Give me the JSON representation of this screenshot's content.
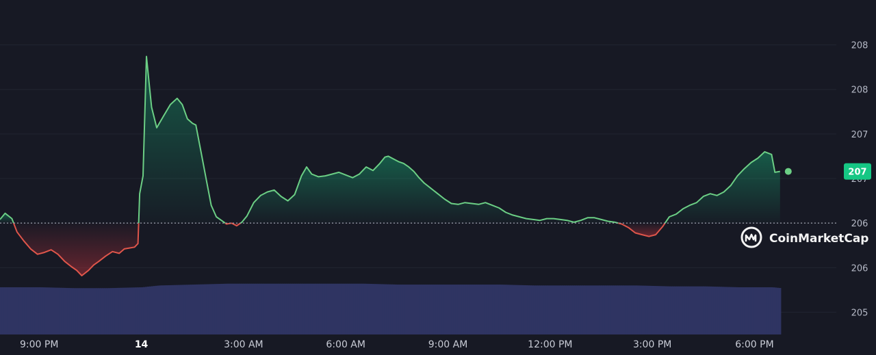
{
  "colors": {
    "background": "#171924",
    "up": "#6ccf85",
    "down": "#e0564b",
    "volume": "#2f3462",
    "grid": "#222531",
    "baseline": "#9fa3b1",
    "badge": "#16c784"
  },
  "watermark": {
    "label": "CoinMarketCap",
    "icon": "coinmarketcap-logo-icon"
  },
  "current_price_badge": "207",
  "chart_data": {
    "type": "area",
    "title": "",
    "xlabel": "",
    "ylabel": "",
    "x_ticks": [
      {
        "label": "9:00 PM",
        "hour": 21,
        "bold": false
      },
      {
        "label": "14",
        "hour": 24,
        "bold": true
      },
      {
        "label": "3:00 AM",
        "hour": 27,
        "bold": false
      },
      {
        "label": "6:00 AM",
        "hour": 30,
        "bold": false
      },
      {
        "label": "9:00 AM",
        "hour": 33,
        "bold": false
      },
      {
        "label": "12:00 PM",
        "hour": 36,
        "bold": false
      },
      {
        "label": "3:00 PM",
        "hour": 39,
        "bold": false
      },
      {
        "label": "6:00 PM",
        "hour": 42,
        "bold": false
      }
    ],
    "y_ticks": [
      {
        "label": "208",
        "value": 208.25
      },
      {
        "label": "208",
        "value": 207.75
      },
      {
        "label": "207",
        "value": 207.25
      },
      {
        "label": "207",
        "value": 206.75
      },
      {
        "label": "206",
        "value": 206.25
      },
      {
        "label": "206",
        "value": 205.75
      },
      {
        "label": "205",
        "value": 205.25
      }
    ],
    "ylim": [
      205.0,
      208.6
    ],
    "xlim": [
      19.85,
      44.1
    ],
    "baseline": 206.25,
    "grid": true,
    "series": [
      {
        "points": [
          [
            19.85,
            206.29
          ],
          [
            20.0,
            206.36
          ],
          [
            20.2,
            206.3
          ],
          [
            20.35,
            206.15
          ],
          [
            20.55,
            206.05
          ],
          [
            20.75,
            205.96
          ],
          [
            20.95,
            205.9
          ],
          [
            21.15,
            205.92
          ],
          [
            21.35,
            205.95
          ],
          [
            21.55,
            205.9
          ],
          [
            21.75,
            205.82
          ],
          [
            21.95,
            205.76
          ],
          [
            22.1,
            205.72
          ],
          [
            22.25,
            205.66
          ],
          [
            22.45,
            205.72
          ],
          [
            22.6,
            205.78
          ],
          [
            22.75,
            205.82
          ],
          [
            22.95,
            205.88
          ],
          [
            23.15,
            205.93
          ],
          [
            23.35,
            205.91
          ],
          [
            23.5,
            205.96
          ],
          [
            23.65,
            205.97
          ],
          [
            23.8,
            205.98
          ],
          [
            23.9,
            206.02
          ],
          [
            23.95,
            206.58
          ],
          [
            24.05,
            206.78
          ],
          [
            24.15,
            208.12
          ],
          [
            24.22,
            207.85
          ],
          [
            24.3,
            207.55
          ],
          [
            24.45,
            207.32
          ],
          [
            24.65,
            207.45
          ],
          [
            24.85,
            207.58
          ],
          [
            25.05,
            207.65
          ],
          [
            25.2,
            207.58
          ],
          [
            25.35,
            207.42
          ],
          [
            25.5,
            207.37
          ],
          [
            25.6,
            207.35
          ],
          [
            25.75,
            207.05
          ],
          [
            25.9,
            206.75
          ],
          [
            26.05,
            206.45
          ],
          [
            26.2,
            206.32
          ],
          [
            26.35,
            206.28
          ],
          [
            26.5,
            206.24
          ],
          [
            26.65,
            206.25
          ],
          [
            26.8,
            206.22
          ],
          [
            26.95,
            206.26
          ],
          [
            27.1,
            206.33
          ],
          [
            27.3,
            206.48
          ],
          [
            27.5,
            206.56
          ],
          [
            27.7,
            206.6
          ],
          [
            27.9,
            206.62
          ],
          [
            28.1,
            206.55
          ],
          [
            28.3,
            206.5
          ],
          [
            28.5,
            206.57
          ],
          [
            28.7,
            206.78
          ],
          [
            28.85,
            206.88
          ],
          [
            29.0,
            206.8
          ],
          [
            29.2,
            206.77
          ],
          [
            29.4,
            206.78
          ],
          [
            29.6,
            206.8
          ],
          [
            29.8,
            206.82
          ],
          [
            30.0,
            206.79
          ],
          [
            30.2,
            206.76
          ],
          [
            30.4,
            206.8
          ],
          [
            30.6,
            206.88
          ],
          [
            30.8,
            206.84
          ],
          [
            31.0,
            206.92
          ],
          [
            31.15,
            206.99
          ],
          [
            31.25,
            207.0
          ],
          [
            31.4,
            206.97
          ],
          [
            31.55,
            206.94
          ],
          [
            31.7,
            206.92
          ],
          [
            31.85,
            206.88
          ],
          [
            32.0,
            206.83
          ],
          [
            32.15,
            206.76
          ],
          [
            32.3,
            206.7
          ],
          [
            32.5,
            206.64
          ],
          [
            32.7,
            206.58
          ],
          [
            32.9,
            206.52
          ],
          [
            33.1,
            206.47
          ],
          [
            33.3,
            206.46
          ],
          [
            33.5,
            206.48
          ],
          [
            33.7,
            206.47
          ],
          [
            33.9,
            206.46
          ],
          [
            34.1,
            206.48
          ],
          [
            34.3,
            206.45
          ],
          [
            34.5,
            206.42
          ],
          [
            34.7,
            206.37
          ],
          [
            34.9,
            206.34
          ],
          [
            35.1,
            206.32
          ],
          [
            35.3,
            206.3
          ],
          [
            35.5,
            206.29
          ],
          [
            35.7,
            206.28
          ],
          [
            35.9,
            206.3
          ],
          [
            36.1,
            206.3
          ],
          [
            36.3,
            206.29
          ],
          [
            36.5,
            206.28
          ],
          [
            36.7,
            206.26
          ],
          [
            36.9,
            206.28
          ],
          [
            37.1,
            206.31
          ],
          [
            37.3,
            206.31
          ],
          [
            37.5,
            206.29
          ],
          [
            37.7,
            206.27
          ],
          [
            37.9,
            206.26
          ],
          [
            38.1,
            206.24
          ],
          [
            38.3,
            206.2
          ],
          [
            38.5,
            206.14
          ],
          [
            38.7,
            206.12
          ],
          [
            38.9,
            206.1
          ],
          [
            39.1,
            206.12
          ],
          [
            39.3,
            206.21
          ],
          [
            39.5,
            206.32
          ],
          [
            39.7,
            206.35
          ],
          [
            39.9,
            206.41
          ],
          [
            40.1,
            206.45
          ],
          [
            40.3,
            206.48
          ],
          [
            40.5,
            206.55
          ],
          [
            40.7,
            206.58
          ],
          [
            40.9,
            206.56
          ],
          [
            41.1,
            206.6
          ],
          [
            41.3,
            206.67
          ],
          [
            41.5,
            206.78
          ],
          [
            41.7,
            206.86
          ],
          [
            41.9,
            206.93
          ],
          [
            42.1,
            206.98
          ],
          [
            42.3,
            207.05
          ],
          [
            42.5,
            207.02
          ],
          [
            42.6,
            206.82
          ],
          [
            42.75,
            206.83
          ]
        ]
      },
      {
        "name": "volume",
        "points": [
          [
            19.85,
            205.53
          ],
          [
            21.0,
            205.53
          ],
          [
            22.0,
            205.52
          ],
          [
            23.0,
            205.52
          ],
          [
            24.0,
            205.53
          ],
          [
            24.5,
            205.55
          ],
          [
            25.5,
            205.56
          ],
          [
            26.5,
            205.57
          ],
          [
            27.5,
            205.57
          ],
          [
            28.5,
            205.57
          ],
          [
            29.5,
            205.57
          ],
          [
            30.5,
            205.57
          ],
          [
            31.5,
            205.56
          ],
          [
            32.5,
            205.56
          ],
          [
            33.5,
            205.56
          ],
          [
            34.5,
            205.56
          ],
          [
            35.5,
            205.55
          ],
          [
            36.5,
            205.55
          ],
          [
            37.5,
            205.55
          ],
          [
            38.5,
            205.55
          ],
          [
            39.5,
            205.54
          ],
          [
            40.5,
            205.54
          ],
          [
            41.5,
            205.53
          ],
          [
            42.5,
            205.53
          ],
          [
            42.75,
            205.52
          ]
        ]
      }
    ],
    "legend": "none"
  }
}
